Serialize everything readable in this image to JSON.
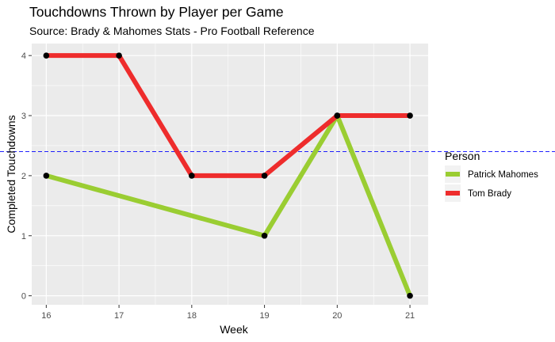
{
  "chart_data": {
    "type": "line",
    "title": "Touchdowns Thrown by Player per Game",
    "subtitle": "Source: Brady & Mahomes Stats - Pro Football Reference",
    "xlabel": "Week",
    "ylabel": "Completed Touchdowns",
    "x_ticks": [
      "16",
      "17",
      "18",
      "19",
      "20",
      "21"
    ],
    "y_ticks": [
      "0",
      "1",
      "2",
      "3",
      "4"
    ],
    "xlim": [
      15.8,
      21.25
    ],
    "ylim": [
      -0.15,
      4.2
    ],
    "grid": true,
    "legend": {
      "title": "Person",
      "position": "right"
    },
    "series": [
      {
        "name": "Patrick Mahomes",
        "color": "#9acd32",
        "x": [
          16,
          19,
          20,
          21
        ],
        "y": [
          2,
          1,
          3,
          0
        ]
      },
      {
        "name": "Tom Brady",
        "color": "#ee2c2c",
        "x": [
          16,
          17,
          18,
          19,
          20,
          21
        ],
        "y": [
          4,
          4,
          2,
          2,
          3,
          3
        ]
      }
    ],
    "reference_line": {
      "y": 2.4,
      "color": "#0000ff",
      "style": "dashed"
    },
    "point_color": "#000000",
    "panel_background": "#ebebeb",
    "grid_color": "#ffffff"
  }
}
